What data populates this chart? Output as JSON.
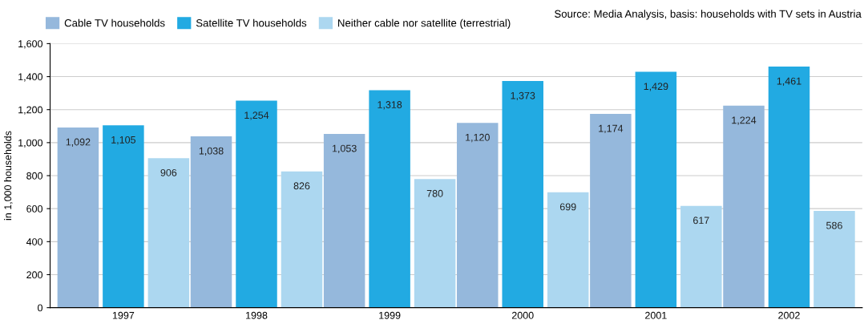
{
  "chart_data": {
    "type": "bar",
    "ylabel": "in 1,000 households",
    "categories": [
      "1997",
      "1998",
      "1999",
      "2000",
      "2001",
      "2002"
    ],
    "series": [
      {
        "name": "Cable TV households",
        "color": "#95b8dc",
        "values": [
          1092,
          1038,
          1053,
          1120,
          1174,
          1224
        ],
        "value_labels": [
          "1,092",
          "1,038",
          "1,053",
          "1,120",
          "1,174",
          "1,224"
        ]
      },
      {
        "name": "Satellite TV households",
        "color": "#22aae2",
        "values": [
          1105,
          1254,
          1318,
          1373,
          1429,
          1461
        ],
        "value_labels": [
          "1,105",
          "1,254",
          "1,318",
          "1,373",
          "1,429",
          "1,461"
        ]
      },
      {
        "name": "Neither cable nor satellite (terrestrial)",
        "color": "#acd7f0",
        "values": [
          906,
          826,
          780,
          699,
          617,
          586
        ],
        "value_labels": [
          "906",
          "826",
          "780",
          "699",
          "617",
          "586"
        ]
      }
    ],
    "ylim": [
      0,
      1600
    ],
    "yticks": [
      0,
      200,
      400,
      600,
      800,
      {
        "value": 1000,
        "label": "1,000"
      },
      {
        "value": 1200,
        "label": "1,200"
      },
      {
        "value": 1400,
        "label": "1,400"
      },
      {
        "value": 1600,
        "label": "1,600"
      }
    ],
    "grid": "y",
    "legend": "top left",
    "annotations": [
      "Source: Media Analysis, basis: households with TV sets in Austria"
    ]
  }
}
